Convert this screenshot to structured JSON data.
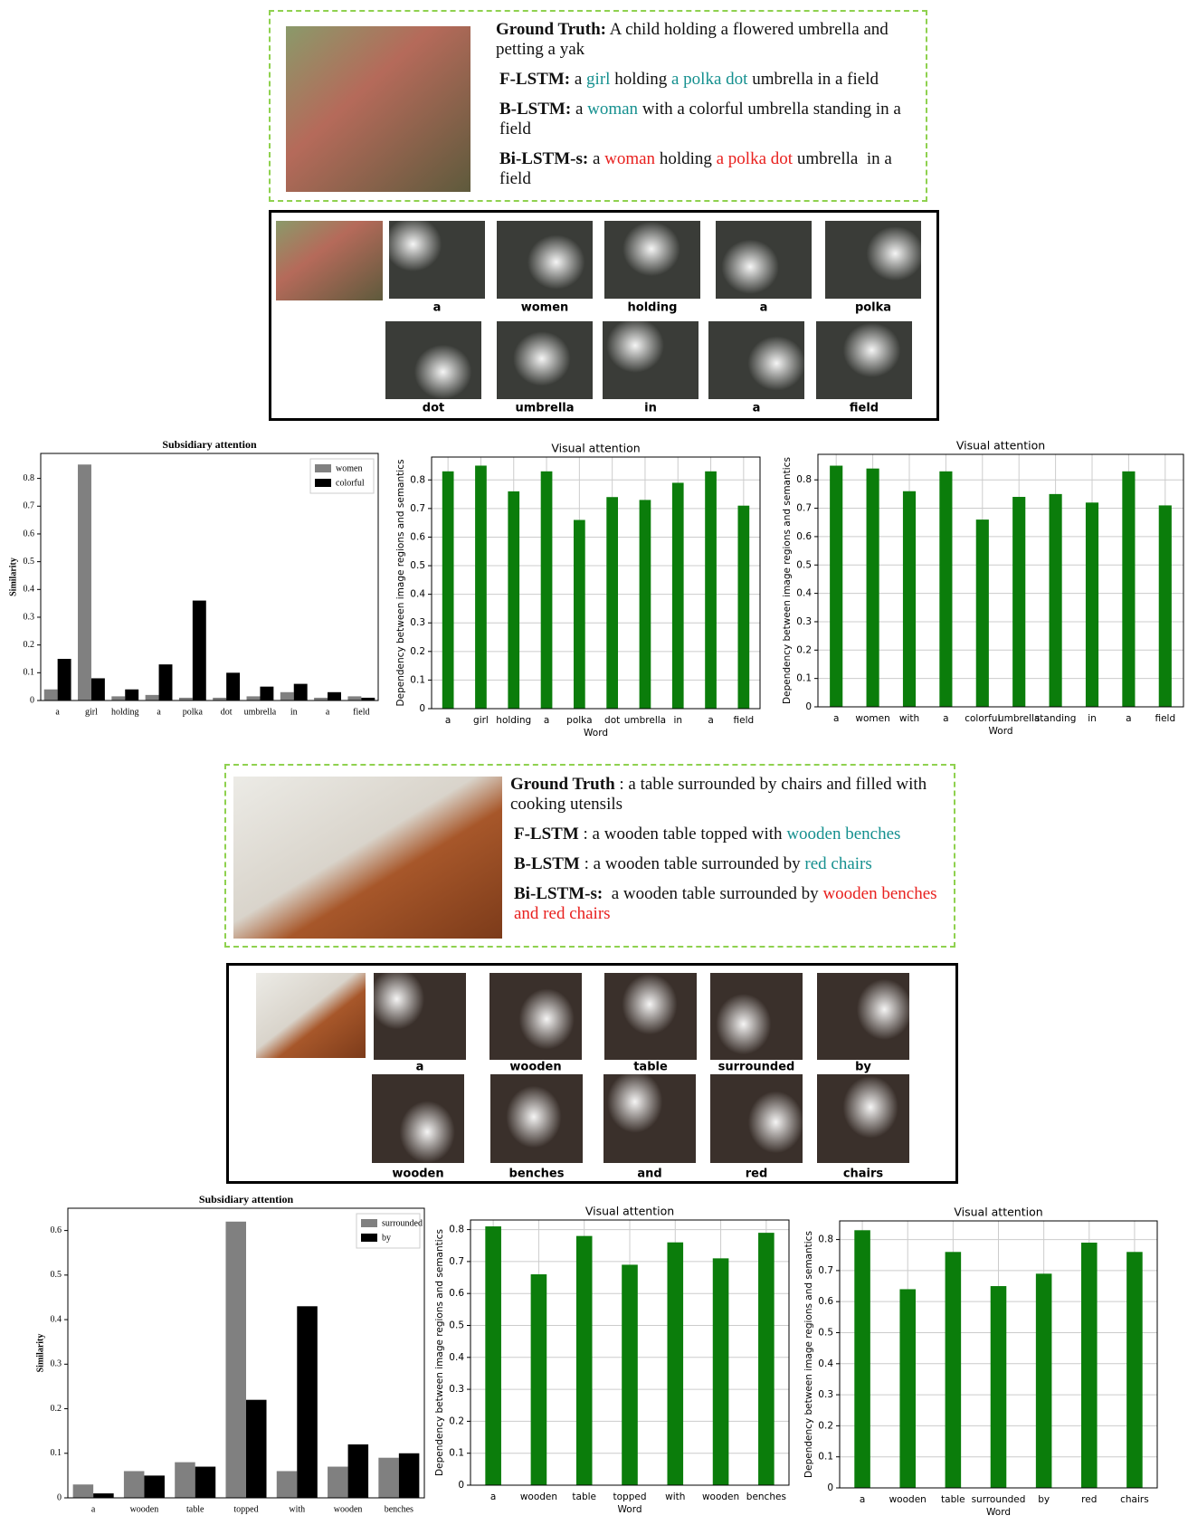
{
  "examples": [
    {
      "ground_truth": {
        "label": "Ground Truth:",
        "text": "A child holding a flowered umbrella and petting a yak"
      },
      "captions": [
        {
          "label": "F-LSTM:",
          "segments": [
            {
              "text": "a "
            },
            {
              "text": "girl",
              "color": "#15908f"
            },
            {
              "text": " holding "
            },
            {
              "text": "a polka dot",
              "color": "#15908f"
            },
            {
              "text": " umbrella in a field"
            }
          ]
        },
        {
          "label": "B-LSTM:",
          "segments": [
            {
              "text": "a "
            },
            {
              "text": "woman",
              "color": "#15908f"
            },
            {
              "text": " with a colorful umbrella standing in a field"
            }
          ]
        },
        {
          "label": "Bi-LSTM-s:",
          "segments": [
            {
              "text": "a "
            },
            {
              "text": "woman",
              "color": "#e8201e"
            },
            {
              "text": " holding "
            },
            {
              "text": "a polka dot",
              "color": "#e8201e"
            },
            {
              "text": " umbrella  in a field"
            }
          ]
        }
      ],
      "attention_words": [
        "a",
        "women",
        "holding",
        "a",
        "polka",
        "dot",
        "umbrella",
        "in",
        "a",
        "field"
      ]
    },
    {
      "ground_truth": {
        "label": "Ground Truth",
        "text": ": a table surrounded by chairs and filled with cooking utensils"
      },
      "captions": [
        {
          "label": "F-LSTM",
          "segments": [
            {
              "text": ": a wooden table topped with "
            },
            {
              "text": "wooden benches",
              "color": "#15908f"
            }
          ]
        },
        {
          "label": "B-LSTM",
          "segments": [
            {
              "text": ": a wooden table surrounded by "
            },
            {
              "text": "red chairs",
              "color": "#15908f"
            }
          ]
        },
        {
          "label": "Bi-LSTM-s:",
          "segments": [
            {
              "text": " a wooden table surrounded by "
            },
            {
              "text": "wooden benches and red chairs",
              "color": "#e8201e"
            }
          ]
        }
      ],
      "attention_words": [
        "a",
        "wooden",
        "table",
        "surrounded",
        "by",
        "wooden",
        "benches",
        "and",
        "red",
        "chairs"
      ]
    }
  ],
  "chart_data": [
    {
      "type": "bar",
      "title": "Subsidiary attention",
      "ylabel": "Similarity",
      "categories": [
        "a",
        "girl",
        "holding",
        "a",
        "polka",
        "dot",
        "umbrella",
        "in",
        "a",
        "field"
      ],
      "series": [
        {
          "name": "women",
          "color": "#808080",
          "values": [
            0.04,
            0.85,
            0.015,
            0.02,
            0.01,
            0.01,
            0.015,
            0.03,
            0.01,
            0.015
          ]
        },
        {
          "name": "colorful",
          "color": "#000000",
          "values": [
            0.15,
            0.08,
            0.04,
            0.13,
            0.36,
            0.1,
            0.05,
            0.06,
            0.03,
            0.01
          ]
        }
      ],
      "ylim": [
        0,
        0.89
      ],
      "yticks": [
        0.0,
        0.1,
        0.2,
        0.3,
        0.4,
        0.5,
        0.6,
        0.7,
        0.8
      ],
      "grid": false,
      "legend": "upper right"
    },
    {
      "type": "bar",
      "title": "Visual attention",
      "xlabel": "Word",
      "ylabel": "Dependency between image regions and semantics",
      "categories": [
        "a",
        "girl",
        "holding",
        "a",
        "polka",
        "dot",
        "umbrella",
        "in",
        "a",
        "field"
      ],
      "values": [
        0.83,
        0.85,
        0.76,
        0.83,
        0.66,
        0.74,
        0.73,
        0.79,
        0.83,
        0.71
      ],
      "color": "#0b7d0b",
      "ylim": [
        0,
        0.88
      ],
      "yticks": [
        0.0,
        0.1,
        0.2,
        0.3,
        0.4,
        0.5,
        0.6,
        0.7,
        0.8
      ],
      "grid": true
    },
    {
      "type": "bar",
      "title": "Visual attention",
      "xlabel": "Word",
      "ylabel": "Dependency between image regions and semantics",
      "categories": [
        "a",
        "women",
        "with",
        "a",
        "colorful",
        "umbrella",
        "standing",
        "in",
        "a",
        "field"
      ],
      "values": [
        0.85,
        0.84,
        0.76,
        0.83,
        0.66,
        0.74,
        0.75,
        0.72,
        0.83,
        0.71
      ],
      "color": "#0b7d0b",
      "ylim": [
        0,
        0.89
      ],
      "yticks": [
        0.0,
        0.1,
        0.2,
        0.3,
        0.4,
        0.5,
        0.6,
        0.7,
        0.8
      ],
      "grid": true
    },
    {
      "type": "bar",
      "title": "Subsidiary attention",
      "ylabel": "Similarity",
      "categories": [
        "a",
        "wooden",
        "table",
        "topped",
        "with",
        "wooden",
        "benches"
      ],
      "series": [
        {
          "name": "surrounded",
          "color": "#808080",
          "values": [
            0.03,
            0.06,
            0.08,
            0.62,
            0.06,
            0.07,
            0.09
          ]
        },
        {
          "name": "by",
          "color": "#000000",
          "values": [
            0.01,
            0.05,
            0.07,
            0.22,
            0.43,
            0.12,
            0.1
          ]
        }
      ],
      "ylim": [
        0,
        0.65
      ],
      "yticks": [
        0.0,
        0.1,
        0.2,
        0.3,
        0.4,
        0.5,
        0.6
      ],
      "grid": false,
      "legend": "upper right"
    },
    {
      "type": "bar",
      "title": "Visual attention",
      "xlabel": "Word",
      "ylabel": "Dependency between image regions and semantics",
      "categories": [
        "a",
        "wooden",
        "table",
        "topped",
        "with",
        "wooden",
        "benches"
      ],
      "values": [
        0.81,
        0.66,
        0.78,
        0.69,
        0.76,
        0.71,
        0.79
      ],
      "color": "#0b7d0b",
      "ylim": [
        0,
        0.83
      ],
      "yticks": [
        0.0,
        0.1,
        0.2,
        0.3,
        0.4,
        0.5,
        0.6,
        0.7,
        0.8
      ],
      "grid": true
    },
    {
      "type": "bar",
      "title": "Visual attention",
      "xlabel": "Word",
      "ylabel": "Dependency between image regions and semantics",
      "categories": [
        "a",
        "wooden",
        "table",
        "surrounded",
        "by",
        "red",
        "chairs"
      ],
      "values": [
        0.83,
        0.64,
        0.76,
        0.65,
        0.69,
        0.79,
        0.76
      ],
      "color": "#0b7d0b",
      "ylim": [
        0,
        0.86
      ],
      "yticks": [
        0.0,
        0.1,
        0.2,
        0.3,
        0.4,
        0.5,
        0.6,
        0.7,
        0.8
      ],
      "grid": true
    }
  ]
}
